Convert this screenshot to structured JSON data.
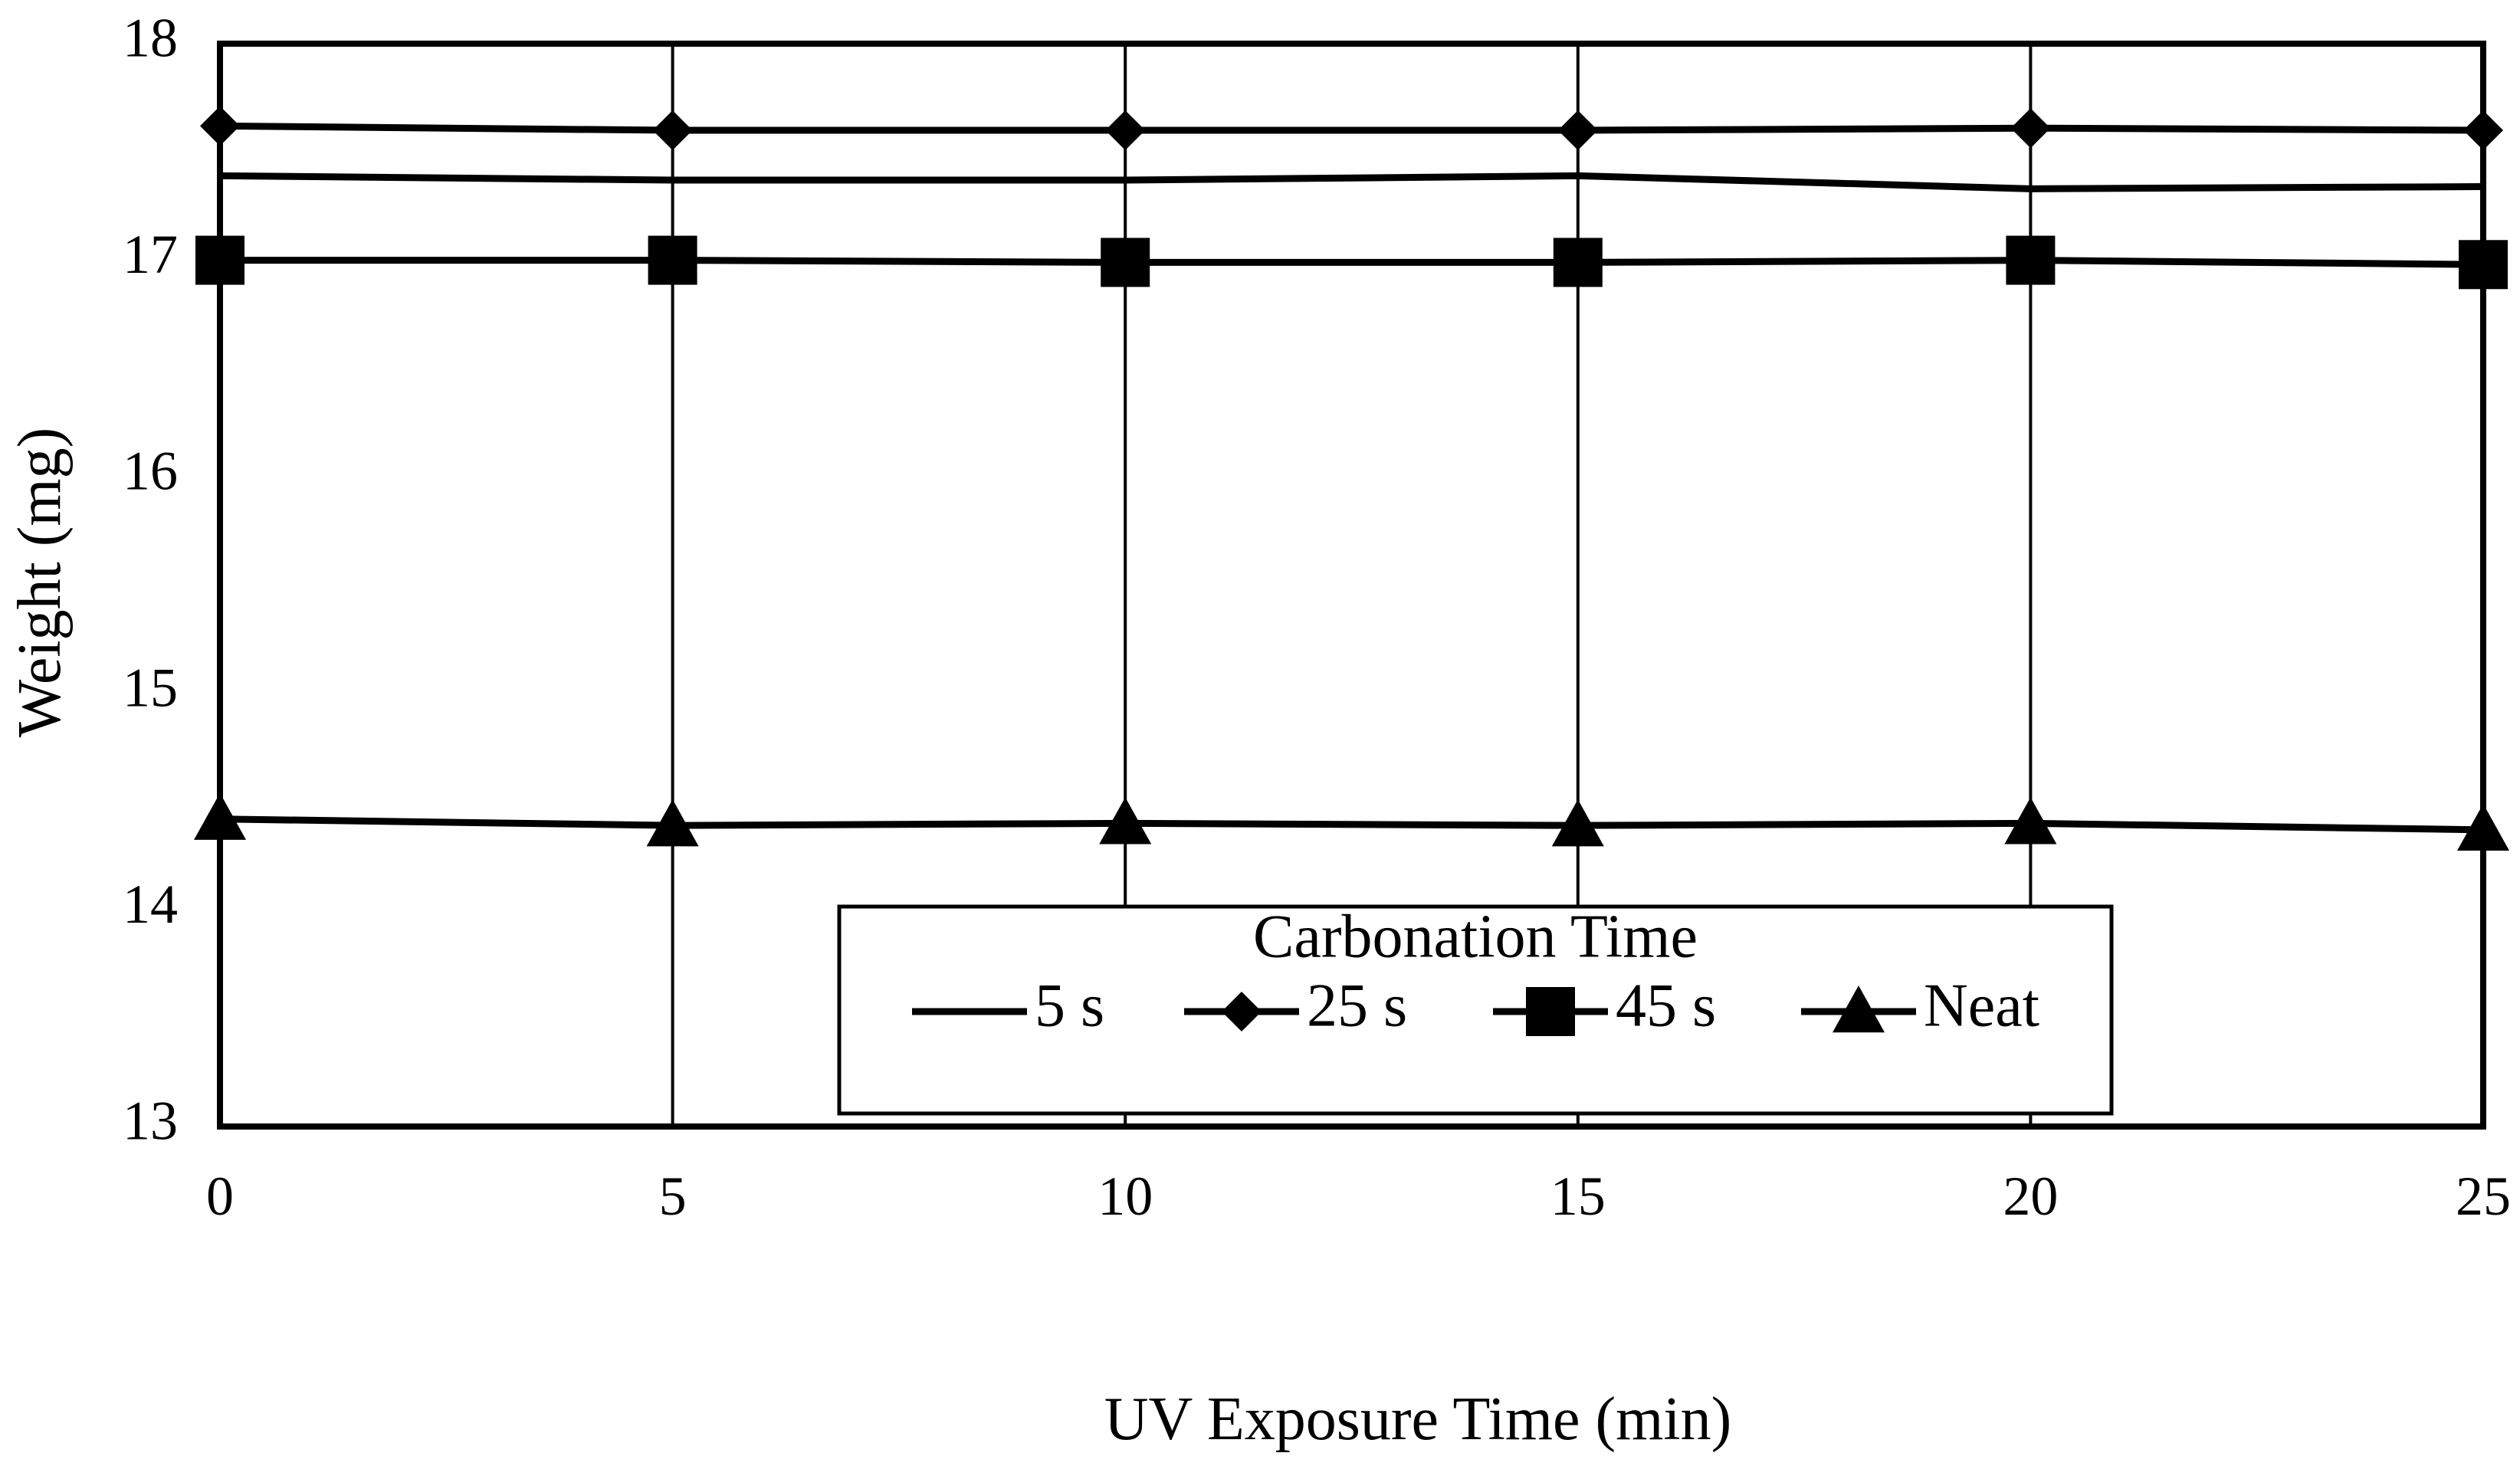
{
  "chart_data": {
    "type": "line",
    "title": "",
    "xlabel": "UV Exposure Time (min)",
    "ylabel": "Weight (mg)",
    "x": [
      0,
      5,
      10,
      15,
      20,
      25
    ],
    "xlim": [
      0,
      25
    ],
    "ylim": [
      13,
      18
    ],
    "x_ticks": [
      "0",
      "5",
      "10",
      "15",
      "20",
      "25"
    ],
    "y_ticks": [
      "13",
      "14",
      "15",
      "16",
      "17",
      "18"
    ],
    "grid": "vertical",
    "legend": {
      "title": "Carbonation Time",
      "placement": "bottom-center",
      "orientation": "horizontal"
    },
    "series": [
      {
        "name": "5 s",
        "marker": "none",
        "color": "#000000",
        "values": [
          17.39,
          17.37,
          17.37,
          17.39,
          17.33,
          17.34
        ]
      },
      {
        "name": "25 s",
        "marker": "diamond",
        "color": "#000000",
        "values": [
          17.62,
          17.6,
          17.6,
          17.6,
          17.61,
          17.6
        ]
      },
      {
        "name": "45 s",
        "marker": "square",
        "color": "#000000",
        "values": [
          17.0,
          17.0,
          16.99,
          16.99,
          17.0,
          16.98
        ]
      },
      {
        "name": "Neat",
        "marker": "triangle",
        "color": "#000000",
        "values": [
          14.42,
          14.39,
          14.4,
          14.39,
          14.4,
          14.37
        ]
      }
    ]
  }
}
